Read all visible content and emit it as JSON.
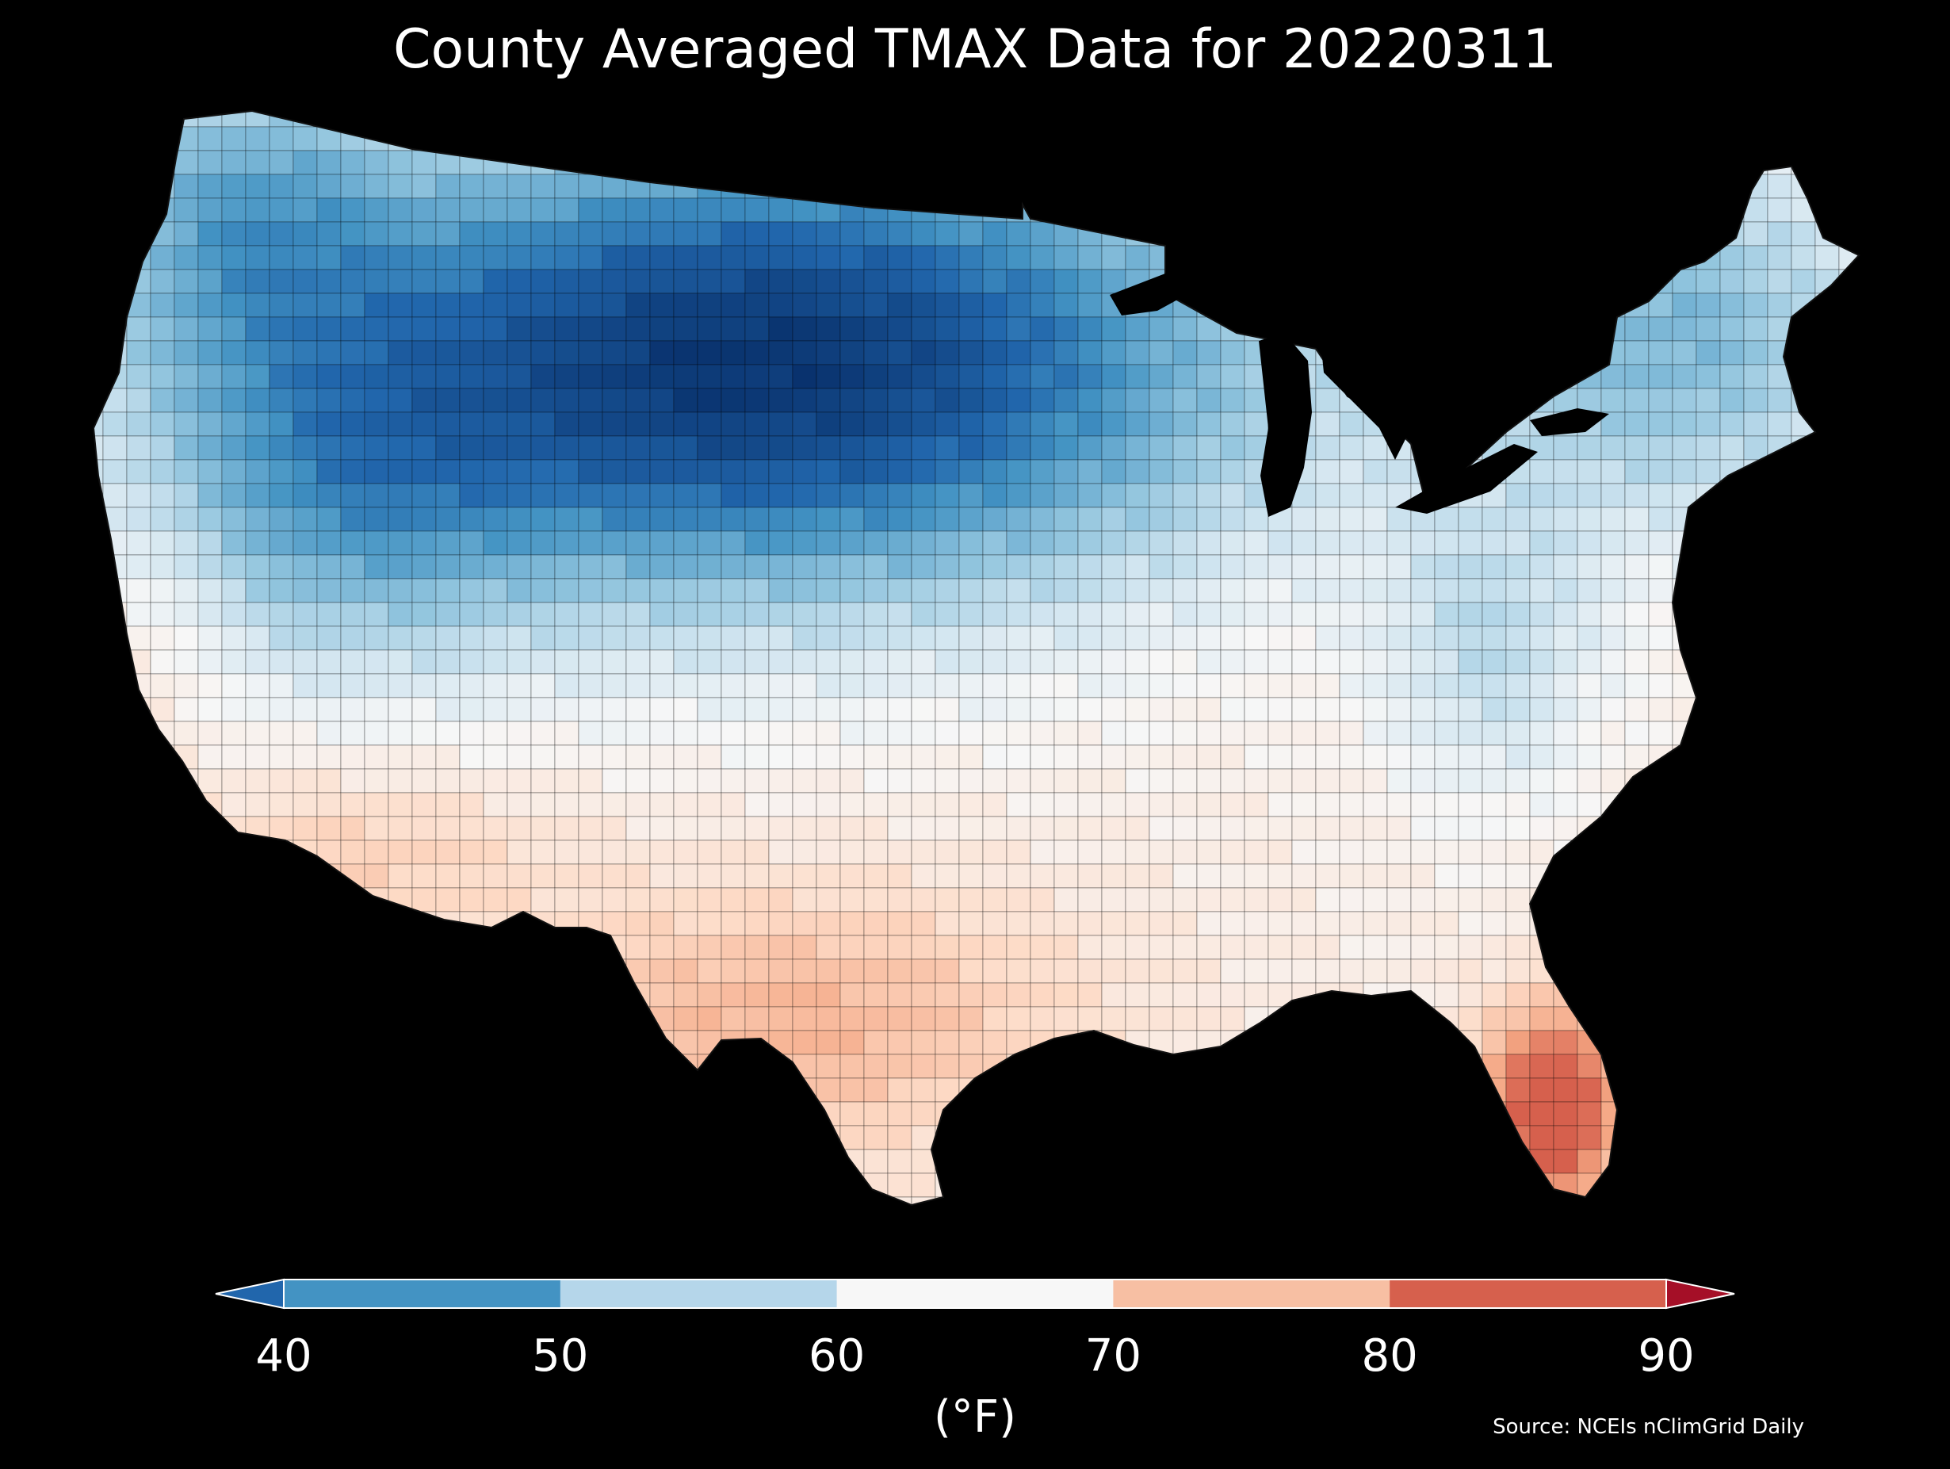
{
  "title": "County Averaged TMAX Data for 20220311",
  "colorbar": {
    "ticks": [
      "40",
      "50",
      "60",
      "70",
      "80",
      "90"
    ],
    "unit_label": "(°F)",
    "bins": [
      {
        "min": 40,
        "max": 50,
        "color": "#4393c3"
      },
      {
        "min": 50,
        "max": 60,
        "color": "#b5d6ea"
      },
      {
        "min": 60,
        "max": 70,
        "color": "#f7f7f7"
      },
      {
        "min": 70,
        "max": 80,
        "color": "#f7bfa3"
      },
      {
        "min": 80,
        "max": 90,
        "color": "#d6604d"
      }
    ],
    "under_color": "#2166ac",
    "over_color": "#a50f27"
  },
  "source": "Source: NCEIs nClimGrid Daily",
  "background_color": "#000000",
  "border_color": "#000000",
  "map_scale": [
    {
      "value": 30,
      "color": "#08306b"
    },
    {
      "value": 40,
      "color": "#2166ac"
    },
    {
      "value": 45,
      "color": "#4393c3"
    },
    {
      "value": 52,
      "color": "#92c5de"
    },
    {
      "value": 58,
      "color": "#d1e5f0"
    },
    {
      "value": 63,
      "color": "#f7f7f7"
    },
    {
      "value": 70,
      "color": "#fddbc7"
    },
    {
      "value": 78,
      "color": "#f4a582"
    },
    {
      "value": 86,
      "color": "#d6604d"
    }
  ]
}
